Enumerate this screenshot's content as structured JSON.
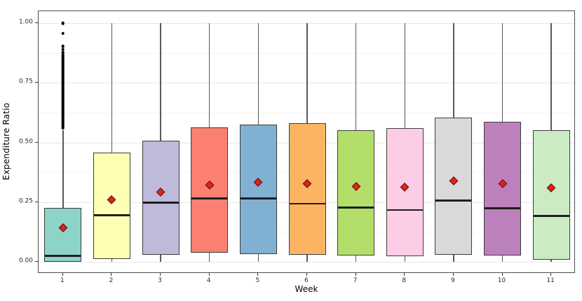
{
  "chart_data": {
    "type": "boxplot",
    "title": "",
    "xlabel": "Week",
    "ylabel": "Expenditure Ratio",
    "ylim": [
      -0.05,
      1.05
    ],
    "grid": "on",
    "legend": "none",
    "y_ticks": [
      {
        "v": 0.0,
        "label": "0.00"
      },
      {
        "v": 0.25,
        "label": "0.25"
      },
      {
        "v": 0.5,
        "label": "0.50"
      },
      {
        "v": 0.75,
        "label": "0.75"
      },
      {
        "v": 1.0,
        "label": "1.00"
      }
    ],
    "y_minor_gridlines": [
      0.125,
      0.375,
      0.625,
      0.875
    ],
    "categories": [
      "1",
      "2",
      "3",
      "4",
      "5",
      "6",
      "7",
      "8",
      "9",
      "10",
      "11"
    ],
    "mean_marker": {
      "shape": "diamond",
      "color": "#e3211c"
    },
    "outlier_color": "#000000",
    "boxes": [
      {
        "week": "1",
        "color": "#8dd3c7",
        "whisker_low": 0.0,
        "q1": 0.0,
        "median": 0.025,
        "q3": 0.225,
        "whisker_high": 0.55,
        "mean": 0.145,
        "outlier_dense_range": [
          0.56,
          0.86
        ],
        "outliers": [
          0.865,
          0.877,
          0.89,
          0.903,
          0.957,
          1.0
        ]
      },
      {
        "week": "2",
        "color": "#ffffb3",
        "whisker_low": 0.0,
        "q1": 0.012,
        "median": 0.195,
        "q3": 0.458,
        "whisker_high": 1.0,
        "mean": 0.26,
        "outliers": []
      },
      {
        "week": "3",
        "color": "#bebada",
        "whisker_low": 0.0,
        "q1": 0.03,
        "median": 0.248,
        "q3": 0.507,
        "whisker_high": 1.0,
        "mean": 0.294,
        "outliers": []
      },
      {
        "week": "4",
        "color": "#fb8072",
        "whisker_low": 0.0,
        "q1": 0.038,
        "median": 0.266,
        "q3": 0.564,
        "whisker_high": 1.0,
        "mean": 0.323,
        "outliers": []
      },
      {
        "week": "5",
        "color": "#80b1d3",
        "whisker_low": 0.0,
        "q1": 0.033,
        "median": 0.265,
        "q3": 0.574,
        "whisker_high": 1.0,
        "mean": 0.333,
        "outliers": []
      },
      {
        "week": "6",
        "color": "#fdb462",
        "whisker_low": 0.0,
        "q1": 0.03,
        "median": 0.243,
        "q3": 0.581,
        "whisker_high": 1.0,
        "mean": 0.328,
        "outliers": []
      },
      {
        "week": "7",
        "color": "#b3de69",
        "whisker_low": 0.0,
        "q1": 0.026,
        "median": 0.227,
        "q3": 0.551,
        "whisker_high": 1.0,
        "mean": 0.317,
        "outliers": []
      },
      {
        "week": "8",
        "color": "#fccde5",
        "whisker_low": 0.0,
        "q1": 0.023,
        "median": 0.217,
        "q3": 0.559,
        "whisker_high": 1.0,
        "mean": 0.313,
        "outliers": []
      },
      {
        "week": "9",
        "color": "#d9d9d9",
        "whisker_low": 0.0,
        "q1": 0.03,
        "median": 0.256,
        "q3": 0.605,
        "whisker_high": 1.0,
        "mean": 0.339,
        "outliers": []
      },
      {
        "week": "10",
        "color": "#bc80bd",
        "whisker_low": 0.0,
        "q1": 0.025,
        "median": 0.224,
        "q3": 0.587,
        "whisker_high": 1.0,
        "mean": 0.328,
        "outliers": []
      },
      {
        "week": "11",
        "color": "#ccebc5",
        "whisker_low": 0.0,
        "q1": 0.009,
        "median": 0.192,
        "q3": 0.551,
        "whisker_high": 1.0,
        "mean": 0.31,
        "outliers": []
      }
    ]
  }
}
